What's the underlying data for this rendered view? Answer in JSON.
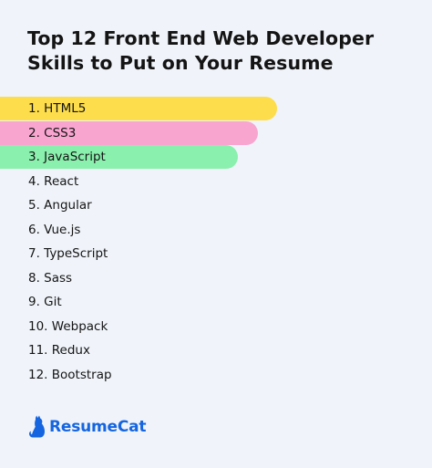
{
  "title": "Top 12 Front End Web Developer Skills to Put on Your Resume",
  "skills": [
    {
      "label": "1. HTML5",
      "bar_color": "#fddd4b",
      "bar_fraction": 1.0
    },
    {
      "label": "2. CSS3",
      "bar_color": "#f8a5d0",
      "bar_fraction": 0.93
    },
    {
      "label": "3. JavaScript",
      "bar_color": "#8af0ad",
      "bar_fraction": 0.86
    },
    {
      "label": "4. React"
    },
    {
      "label": "5. Angular"
    },
    {
      "label": "6. Vue.js"
    },
    {
      "label": "7. TypeScript"
    },
    {
      "label": "8. Sass"
    },
    {
      "label": "9. Git"
    },
    {
      "label": "10. Webpack"
    },
    {
      "label": "11. Redux"
    },
    {
      "label": "12. Bootstrap"
    }
  ],
  "brand": {
    "name": "ResumeCat",
    "icon": "cat-logo-icon",
    "color": "#1565e0"
  }
}
